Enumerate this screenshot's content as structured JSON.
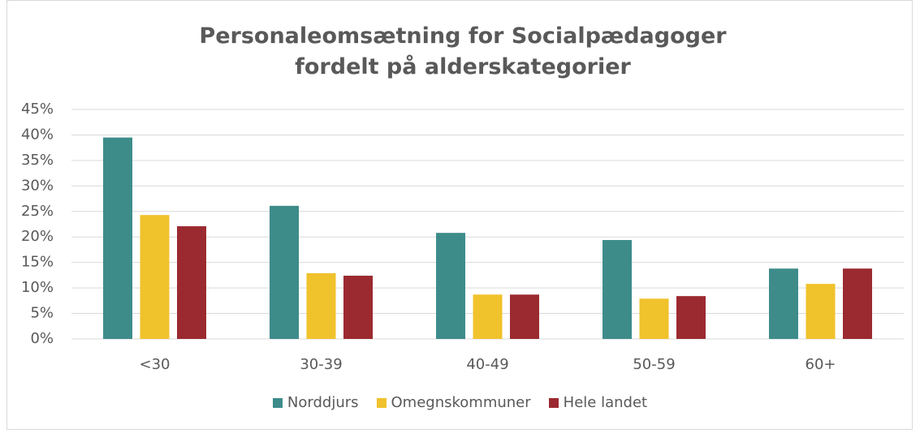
{
  "chart_data": {
    "type": "bar",
    "title": "Personaleomsætning for Socialpædagoger fordelt på alderskategorier",
    "categories": [
      "<30",
      "30-39",
      "40-49",
      "50-59",
      "60+"
    ],
    "series": [
      {
        "name": "Norddjurs",
        "color": "#3d8c8a",
        "values": [
          39.5,
          26.1,
          20.8,
          19.4,
          13.8
        ]
      },
      {
        "name": "Omegnskommuner",
        "color": "#f0c22c",
        "values": [
          24.3,
          12.9,
          8.7,
          7.9,
          10.8
        ]
      },
      {
        "name": "Hele landet",
        "color": "#9b2a30",
        "values": [
          22.1,
          12.4,
          8.7,
          8.4,
          13.8
        ]
      }
    ],
    "ylim": [
      0,
      45
    ],
    "yticks": [
      {
        "value": 0,
        "label": "0%"
      },
      {
        "value": 5,
        "label": "5%"
      },
      {
        "value": 10,
        "label": "10%"
      },
      {
        "value": 15,
        "label": "15%"
      },
      {
        "value": 20,
        "label": "20%"
      },
      {
        "value": 25,
        "label": "25%"
      },
      {
        "value": 30,
        "label": "30%"
      },
      {
        "value": 35,
        "label": "35%"
      },
      {
        "value": 40,
        "label": "40%"
      },
      {
        "value": 45,
        "label": "45%"
      }
    ],
    "grid": true,
    "legend": "bottom"
  }
}
